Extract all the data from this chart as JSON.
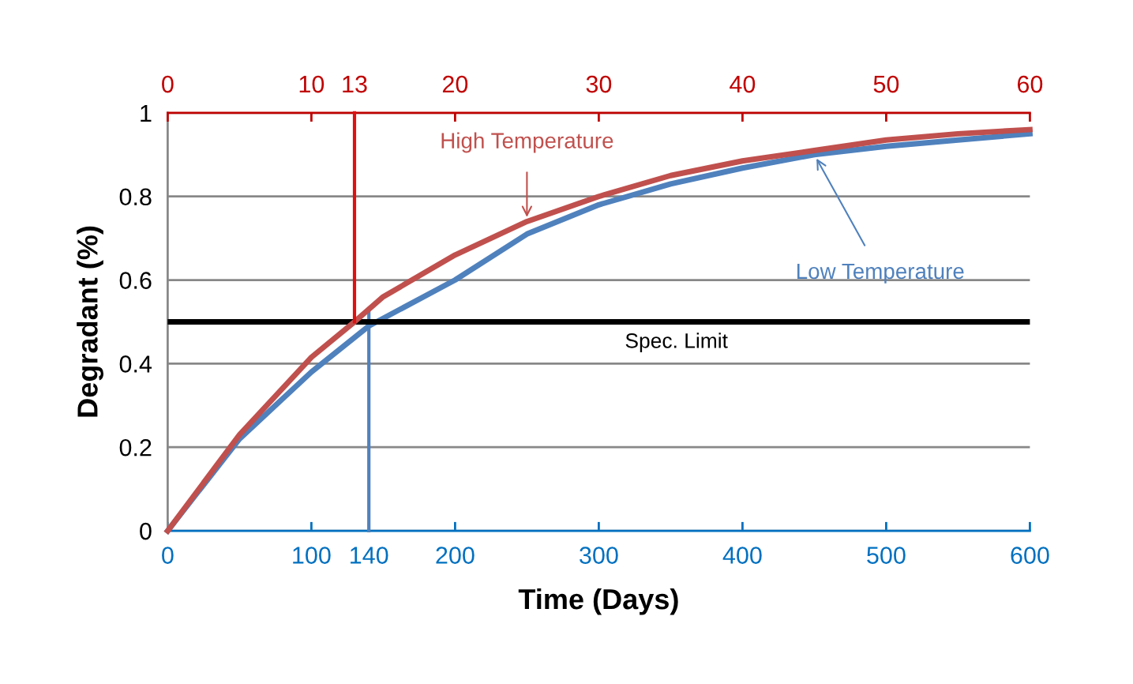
{
  "chart_data": {
    "type": "line",
    "xlabel": "Time (Days)",
    "ylabel": "Degradant (%)",
    "xlim": [
      0,
      600
    ],
    "xticks": [
      0,
      {
        "value": 100,
        "label": "100"
      },
      {
        "value": 140,
        "label": "140"
      },
      200,
      300,
      400,
      500,
      600
    ],
    "x2lim": [
      0,
      60
    ],
    "x2ticks": [
      0,
      10,
      {
        "value": 13,
        "label": "13"
      },
      20,
      30,
      40,
      50,
      60
    ],
    "ylim": [
      0,
      1
    ],
    "yticks": [
      0,
      0.2,
      0.4,
      0.6,
      0.8,
      1
    ],
    "grid": "y",
    "legend": false,
    "marker": "none",
    "line_style": "solid",
    "series": [
      {
        "name": "Low Temperature",
        "color": "#4f81bd",
        "x": [
          0,
          50,
          100,
          140,
          200,
          250,
          300,
          350,
          400,
          450,
          500,
          550,
          600
        ],
        "values": [
          0,
          0.22,
          0.38,
          0.49,
          0.6,
          0.71,
          0.78,
          0.83,
          0.868,
          0.9,
          0.92,
          0.935,
          0.95
        ]
      },
      {
        "name": "High Temperature",
        "color": "#c0504d",
        "axis": "x2",
        "x": [
          0,
          5,
          10,
          13,
          15,
          20,
          25,
          30,
          35,
          40,
          45,
          50,
          55,
          60
        ],
        "values": [
          0,
          0.23,
          0.415,
          0.5,
          0.56,
          0.66,
          0.74,
          0.8,
          0.85,
          0.885,
          0.91,
          0.935,
          0.95,
          0.96
        ]
      },
      {
        "color": "#e01010",
        "axis": "x2",
        "x": [
          13,
          13
        ],
        "values": [
          1,
          0.5
        ]
      },
      {
        "color": "#4f81bd",
        "x": [
          140,
          140
        ],
        "values": [
          0.53,
          0
        ]
      }
    ],
    "ref_lines": [
      {
        "axis": "y",
        "value": 0.5,
        "label": "Spec. Limit",
        "color": "#000000"
      }
    ]
  }
}
